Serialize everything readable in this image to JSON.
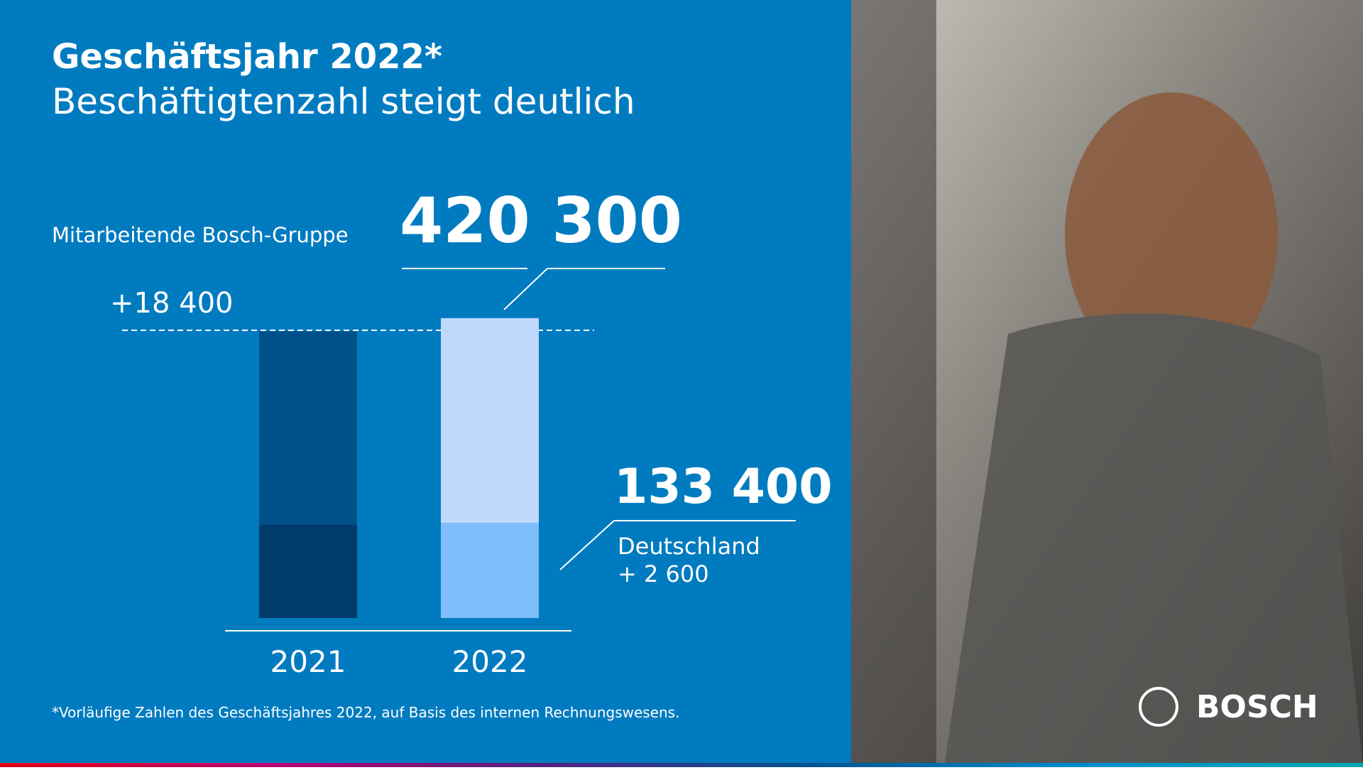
{
  "chart_data": {
    "type": "bar",
    "title": "Geschäftsjahr 2022*",
    "subtitle": "Beschäftigtenzahl steigt deutlich",
    "total_label": "Mitarbeitende Bosch-Gruppe",
    "total_value_label": "420 300",
    "change_label": "+18 400",
    "categories": [
      "2021",
      "2022"
    ],
    "series": [
      {
        "name": "Deutschland",
        "colors": [
          "#003b6a",
          "#80bdfb"
        ],
        "values": [
          130800,
          133400
        ],
        "value_labels": [
          null,
          "133 400"
        ],
        "change_label": "+ 2 600"
      },
      {
        "colors": [
          "#00508c",
          "#bfd9fd"
        ],
        "values": [
          271100,
          286900
        ]
      }
    ],
    "ylim": [
      0,
      450000
    ],
    "footnote": "*Vorläufige Zahlen des Geschäftsjahres 2022, auf Basis des internen Rechnungswesens.",
    "brand": "BOSCH"
  }
}
